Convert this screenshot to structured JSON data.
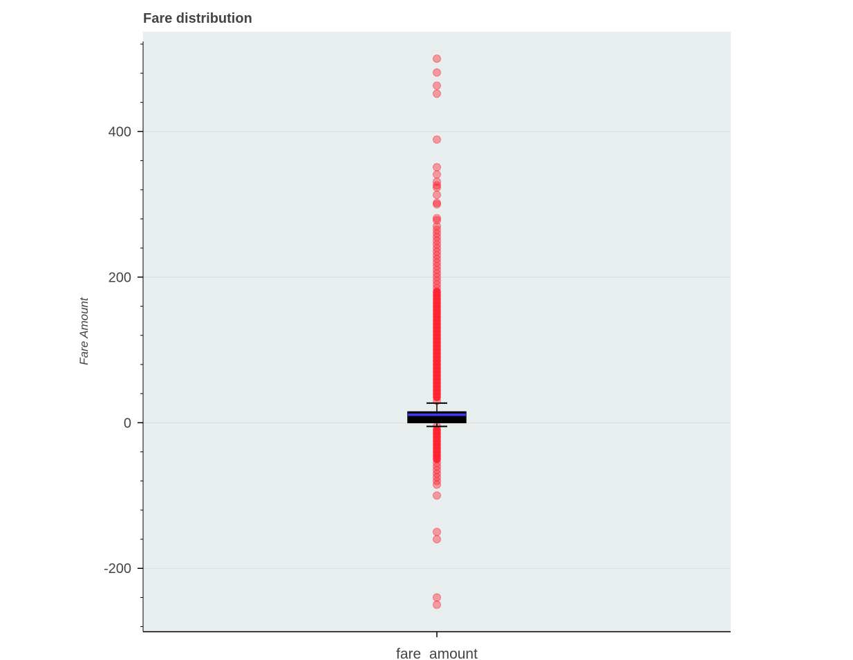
{
  "chart_data": {
    "type": "box",
    "title": "Fare distribution",
    "xlabel": "",
    "ylabel": "Fare Amount",
    "categories": [
      "fare_amount"
    ],
    "ylim": [
      -287,
      537
    ],
    "y_ticks": [
      -200,
      0,
      200,
      400
    ],
    "y_minor_step": 40,
    "grid": true,
    "box": {
      "category": "fare_amount",
      "whisker_low": -5,
      "q1": 0,
      "median": 11,
      "q3": 15,
      "whisker_high": 27
    },
    "outliers": [
      500,
      481,
      463,
      452,
      389,
      351,
      341,
      331,
      326,
      323,
      313,
      302,
      300,
      281,
      278,
      270,
      265,
      260,
      255,
      250,
      245,
      240,
      235,
      230,
      225,
      220,
      215,
      210,
      205,
      200,
      195,
      190,
      185,
      180,
      175,
      170,
      165,
      160,
      155,
      150,
      145,
      140,
      135,
      130,
      125,
      120,
      115,
      110,
      105,
      100,
      95,
      90,
      85,
      80,
      75,
      70,
      65,
      60,
      55,
      50,
      45,
      40,
      35,
      30,
      -5,
      -10,
      -15,
      -20,
      -25,
      -30,
      -35,
      -40,
      -45,
      -50,
      -55,
      -60,
      -65,
      -70,
      -75,
      -80,
      -85,
      -100,
      -150,
      -160,
      -240,
      -250
    ],
    "colors": {
      "plot_background": "#e8eeee",
      "box_fill": "#000000",
      "median_line": "#3a3aff",
      "outlier": "#ff1a2a",
      "axis": "#000000",
      "grid": "#dcdcdc"
    }
  }
}
